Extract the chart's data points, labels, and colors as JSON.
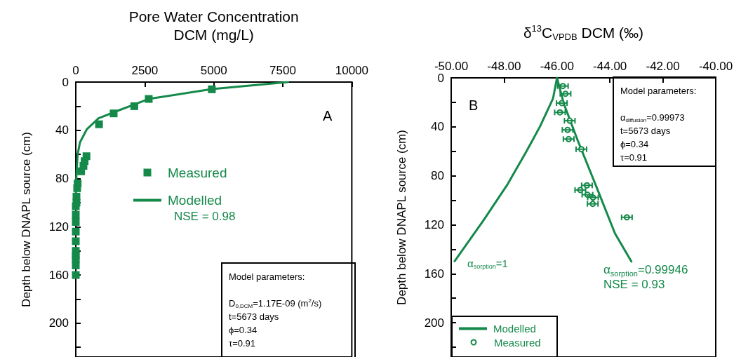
{
  "chart_data": [
    {
      "type": "scatter",
      "xlabel": "Pore Water Concentration\nDCM (mg/L)",
      "ylabel": "Depth below DNAPL source (cm)",
      "xlim": [
        0,
        10000
      ],
      "xticks": [
        0,
        2500,
        5000,
        7500,
        10000
      ],
      "ylim": [
        228,
        0
      ],
      "yticks": [
        0,
        {
          "value": 20,
          "label": null
        },
        40,
        {
          "value": 60,
          "label": null
        },
        80,
        {
          "value": 100,
          "label": null
        },
        120,
        {
          "value": 140,
          "label": null
        },
        160,
        {
          "value": 180,
          "label": null
        },
        200,
        {
          "value": 220,
          "label": null
        }
      ],
      "grid": false,
      "legend": "left",
      "series": [
        {
          "name": "Measured",
          "marker": "square",
          "color": "#14894a",
          "x": [
            4930,
            2643,
            2121,
            1372,
            842,
            387,
            320,
            278,
            194,
            67,
            50,
            25,
            25,
            0,
            0,
            0,
            0,
            0,
            0,
            0,
            0,
            0,
            0
          ],
          "values": [
            6,
            14,
            20,
            26,
            35,
            61.5,
            65.6,
            69.5,
            74,
            84,
            88,
            95,
            100,
            103,
            110,
            116,
            124,
            132,
            140,
            144,
            147,
            152,
            160
          ]
        },
        {
          "name": "Modelled",
          "type": "line",
          "marker": "none",
          "line_style": "solid",
          "color": "#14894a",
          "x": [
            7685,
            4933,
            2643,
            1498,
            825,
            404,
            152,
            67,
            25,
            0
          ],
          "values": [
            0,
            5.8,
            14,
            24,
            30,
            39,
            50,
            60,
            76,
            95
          ]
        }
      ],
      "annotations": [
        "A",
        "Model parameters:\n\nD$_{0,DCM}$=1.17E-09 (m$^{2}$/s)\nt=5673 days\nϕ=0.34\nτ=0.91",
        "NSE = 0.98"
      ]
    },
    {
      "type": "scatter",
      "xlabel": "δ$^{13}$C$_{VPDB}$ DCM (‰)",
      "ylabel": "Depth below DNAPL source (cm)",
      "xlim": [
        -50,
        -40
      ],
      "xticks": [
        {
          "value": -50,
          "label": "-50.00"
        },
        {
          "value": -48,
          "label": "-48.00"
        },
        {
          "value": -46,
          "label": "-46.00"
        },
        {
          "value": -44,
          "label": "-44.00"
        },
        {
          "value": -42,
          "label": "-42.00"
        },
        {
          "value": -40,
          "label": "-40.00"
        }
      ],
      "ylim": [
        228,
        0
      ],
      "yticks": [
        0,
        {
          "value": 20,
          "label": null
        },
        40,
        {
          "value": 60,
          "label": null
        },
        80,
        {
          "value": 100,
          "label": null
        },
        120,
        {
          "value": 140,
          "label": null
        },
        160,
        {
          "value": 180,
          "label": null
        },
        200,
        {
          "value": 220,
          "label": null
        }
      ],
      "grid": false,
      "legend": "bottom left",
      "series": [
        {
          "name": "Modelled",
          "type": "line",
          "marker": "none",
          "line_style": "solid",
          "color": "#14894a",
          "x": [
            -46,
            -45.75,
            -45.22,
            -44.51,
            -43.81,
            -43.19
          ],
          "values": [
            0,
            20.6,
            51,
            89,
            127,
            150
          ]
        },
        {
          "type": "line",
          "marker": "none",
          "line_style": "solid",
          "color": "#14894a",
          "x": [
            -46,
            -46.15,
            -46.64,
            -47.17,
            -47.88,
            -48.76,
            -49.87
          ],
          "values": [
            0,
            16.8,
            39.6,
            60.6,
            87.3,
            115.8,
            149.7
          ]
        },
        {
          "name": "Measured",
          "marker": "circle",
          "color": "#14894a",
          "x": [
            -45.78,
            -45.68,
            -45.82,
            -45.89,
            -45.52,
            -45.6,
            -45.56,
            -45.08,
            -44.87,
            -45.12,
            -44.85,
            -44.64,
            -44.65,
            -43.36
          ],
          "values": [
            6.7,
            13,
            20.6,
            28.2,
            35,
            42.5,
            50,
            58.3,
            87.8,
            91.6,
            95.4,
            97.7,
            102.9,
            113.9
          ],
          "xerrors": [
            0.2,
            0.2,
            0.2,
            0.2,
            0.2,
            0.2,
            0.2,
            0.2,
            0.2,
            0.2,
            0.2,
            0.2,
            0.2,
            0.2
          ]
        }
      ],
      "annotations": [
        "B",
        "Model parameters:\n\nα$_{diffusion}$=0.99973\nt=5673 days\nϕ=0.34\nτ=0.91",
        "α$_{sorption}$=1",
        "α$_{sorption}$=0.99946",
        "NSE = 0.93"
      ]
    }
  ]
}
